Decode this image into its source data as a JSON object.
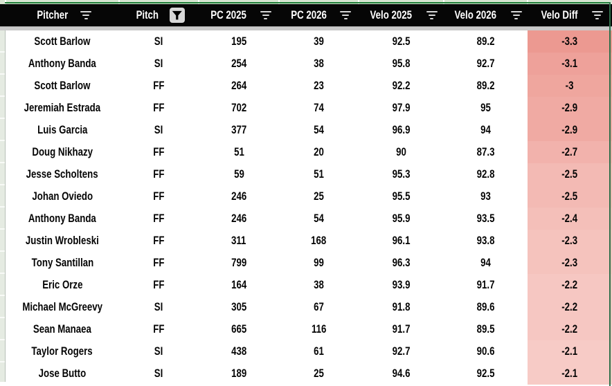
{
  "table": {
    "columns": [
      {
        "label": "Pitcher",
        "icon": "filter-lines"
      },
      {
        "label": "Pitch",
        "icon": "filter-funnel-active"
      },
      {
        "label": "PC 2025",
        "icon": "filter-lines"
      },
      {
        "label": "PC 2026",
        "icon": "filter-lines"
      },
      {
        "label": "Velo 2025",
        "icon": "filter-lines"
      },
      {
        "label": "Velo 2026",
        "icon": "filter-lines"
      },
      {
        "label": "Velo Diff",
        "icon": "filter-lines"
      }
    ],
    "rows": [
      [
        "Scott Barlow",
        "SI",
        "195",
        "39",
        "92.5",
        "89.2",
        "-3.3"
      ],
      [
        "Anthony Banda",
        "SI",
        "254",
        "38",
        "95.8",
        "92.7",
        "-3.1"
      ],
      [
        "Scott Barlow",
        "FF",
        "264",
        "23",
        "92.2",
        "89.2",
        "-3"
      ],
      [
        "Jeremiah Estrada",
        "FF",
        "702",
        "74",
        "97.9",
        "95",
        "-2.9"
      ],
      [
        "Luis Garcia",
        "SI",
        "377",
        "54",
        "96.9",
        "94",
        "-2.9"
      ],
      [
        "Doug Nikhazy",
        "FF",
        "51",
        "20",
        "90",
        "87.3",
        "-2.7"
      ],
      [
        "Jesse Scholtens",
        "FF",
        "59",
        "51",
        "95.3",
        "92.8",
        "-2.5"
      ],
      [
        "Johan Oviedo",
        "FF",
        "246",
        "25",
        "95.5",
        "93",
        "-2.5"
      ],
      [
        "Anthony Banda",
        "FF",
        "246",
        "54",
        "95.9",
        "93.5",
        "-2.4"
      ],
      [
        "Justin Wrobleski",
        "FF",
        "311",
        "168",
        "96.1",
        "93.8",
        "-2.3"
      ],
      [
        "Tony Santillan",
        "FF",
        "799",
        "99",
        "96.3",
        "94",
        "-2.3"
      ],
      [
        "Eric Orze",
        "FF",
        "164",
        "38",
        "93.9",
        "91.7",
        "-2.2"
      ],
      [
        "Michael McGreevy",
        "SI",
        "305",
        "67",
        "91.8",
        "89.6",
        "-2.2"
      ],
      [
        "Sean Manaea",
        "FF",
        "665",
        "116",
        "91.7",
        "89.5",
        "-2.2"
      ],
      [
        "Taylor Rogers",
        "SI",
        "438",
        "61",
        "92.7",
        "90.6",
        "-2.1"
      ],
      [
        "Jose Butto",
        "SI",
        "189",
        "25",
        "94.6",
        "92.5",
        "-2.1"
      ]
    ]
  },
  "colors": {
    "header_bg": "#060606",
    "header_text": "#ffffff",
    "filter_range_green": "#1f8038",
    "frozen_divider_gray": "#c9c9c9",
    "adjacent_cells_green": "#d8e5d2",
    "diff_scale_dark": "#ec9991",
    "diff_scale_light": "#f7cbc6",
    "diff_scale_value_range": [
      -3.3,
      -2.1
    ]
  }
}
